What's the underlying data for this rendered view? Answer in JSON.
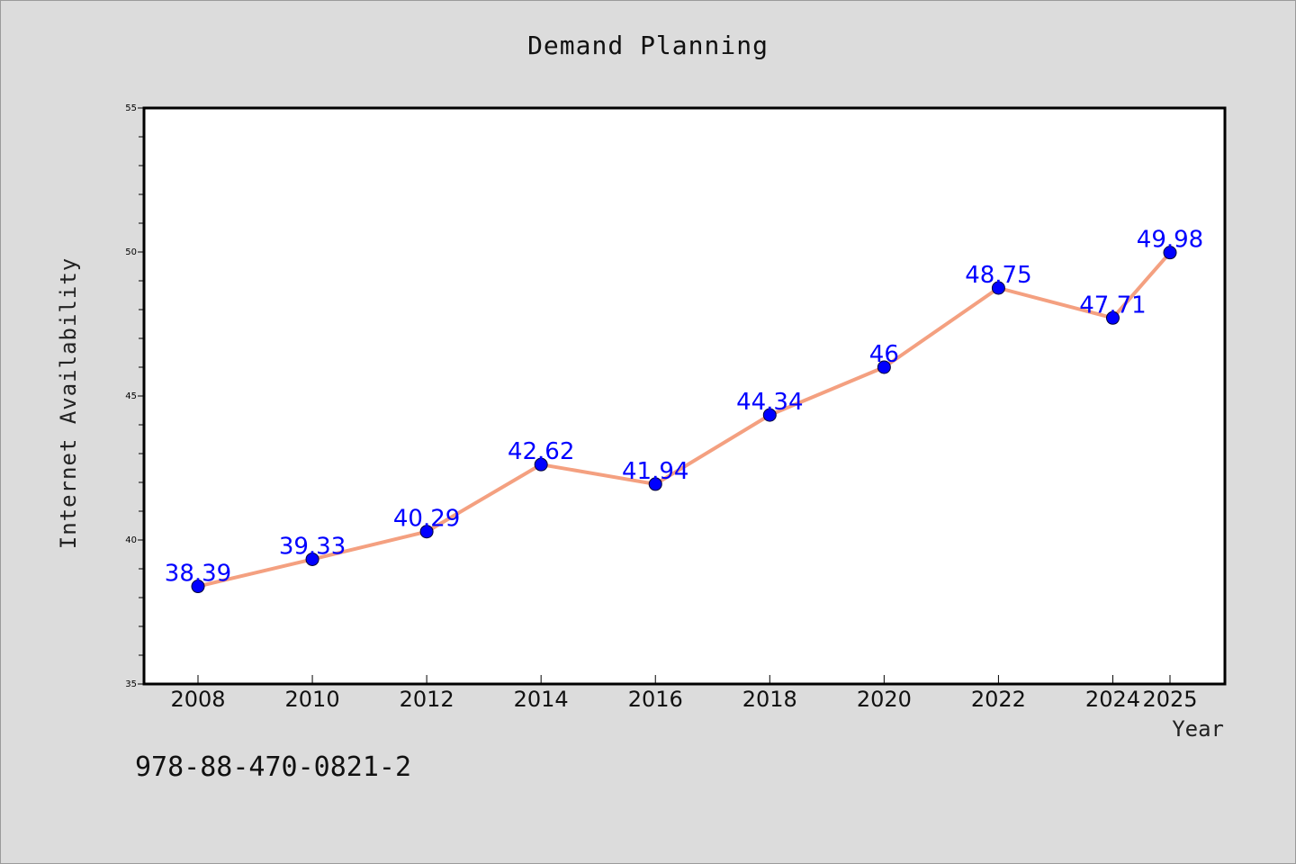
{
  "chart_data": {
    "type": "line",
    "title": "Demand Planning",
    "xlabel": "Year",
    "ylabel": "Internet Availability",
    "x": [
      "2008",
      "2010",
      "2012",
      "2014",
      "2016",
      "2018",
      "2020",
      "2022",
      "2024",
      "2025"
    ],
    "series": [
      {
        "values": [
          38.39,
          39.33,
          40.29,
          42.62,
          41.94,
          44.34,
          46,
          48.75,
          47.71,
          49.98
        ],
        "labels": [
          "38.39",
          "39.33",
          "40.29",
          "42.62",
          "41.94",
          "44.34",
          "46",
          "48.75",
          "47.71",
          "49.98"
        ],
        "line_color": "#f4a080",
        "marker_color": "#0000ff"
      }
    ],
    "ylim": [
      35,
      55
    ],
    "yticks": [
      "35",
      "40",
      "45",
      "50",
      "55"
    ],
    "grid": false
  },
  "footer": {
    "code": "978-88-470-0821-2"
  }
}
